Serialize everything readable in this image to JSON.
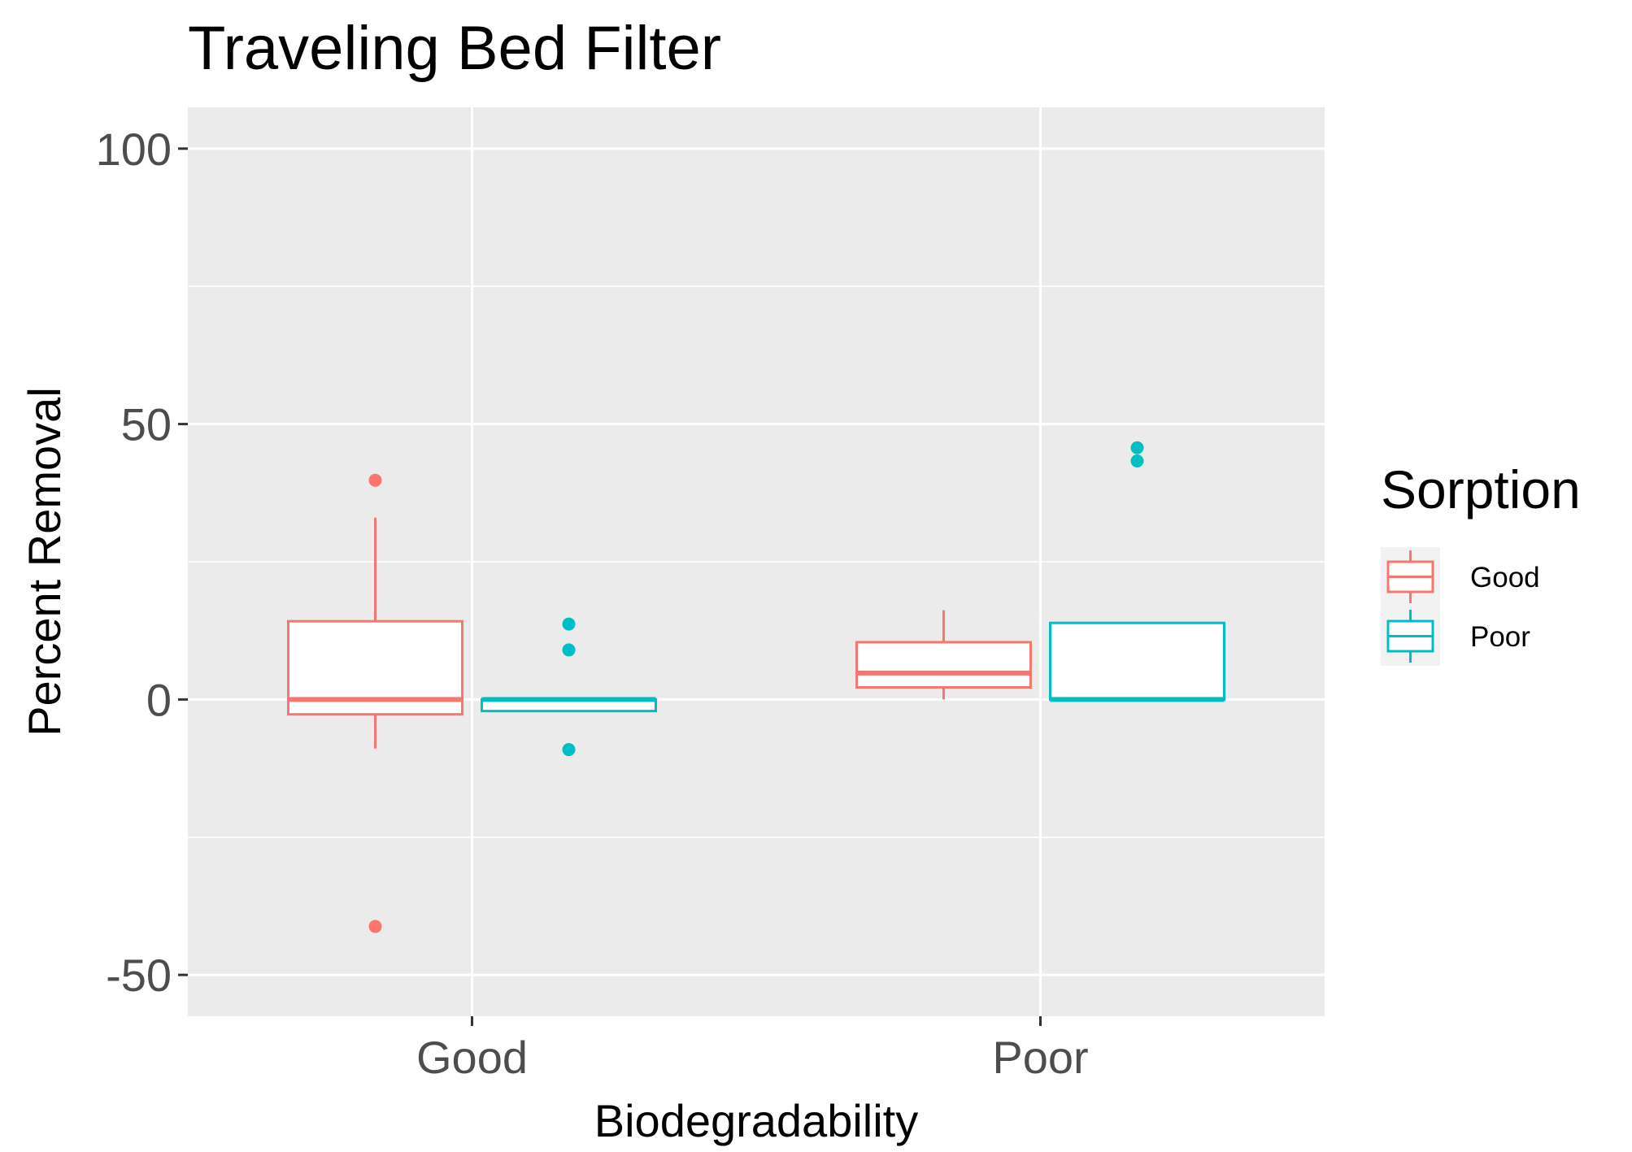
{
  "chart_data": {
    "type": "boxplot",
    "title": "Traveling Bed Filter",
    "xlabel": "Biodegradability",
    "ylabel": "Percent Removal",
    "ylim": [
      -57.5,
      107.5
    ],
    "yticks": [
      -50,
      0,
      50,
      100
    ],
    "categories": [
      "Good",
      "Poor"
    ],
    "grid": true,
    "legend": {
      "title": "Sorption",
      "position": "right",
      "entries": [
        "Good",
        "Poor"
      ]
    },
    "series": [
      {
        "name": "Good",
        "color": "#F8766D",
        "boxes": [
          {
            "category": "Good",
            "q1": -2.7,
            "median": 0,
            "q3": 14.2,
            "whisker_low": -8.9,
            "whisker_high": 33.0,
            "outliers": [
              39.8,
              -41.2
            ]
          },
          {
            "category": "Poor",
            "q1": 2.2,
            "median": 4.8,
            "q3": 10.4,
            "whisker_low": 0,
            "whisker_high": 16.2,
            "outliers": []
          }
        ]
      },
      {
        "name": "Poor",
        "color": "#00BFC4",
        "boxes": [
          {
            "category": "Good",
            "q1": -2.1,
            "median": 0,
            "q3": 0,
            "whisker_low": -2.1,
            "whisker_high": 0,
            "outliers": [
              13.7,
              9.0,
              -9.1
            ]
          },
          {
            "category": "Poor",
            "q1": 0,
            "median": 0,
            "q3": 13.9,
            "whisker_low": 0,
            "whisker_high": 13.9,
            "outliers": [
              45.7,
              43.3
            ]
          }
        ]
      }
    ]
  },
  "colors": {
    "panel_background": "#EBEBEB",
    "gridline": "#FFFFFF",
    "axis_tick": "#333333",
    "tick_text": "#4D4D4D"
  }
}
